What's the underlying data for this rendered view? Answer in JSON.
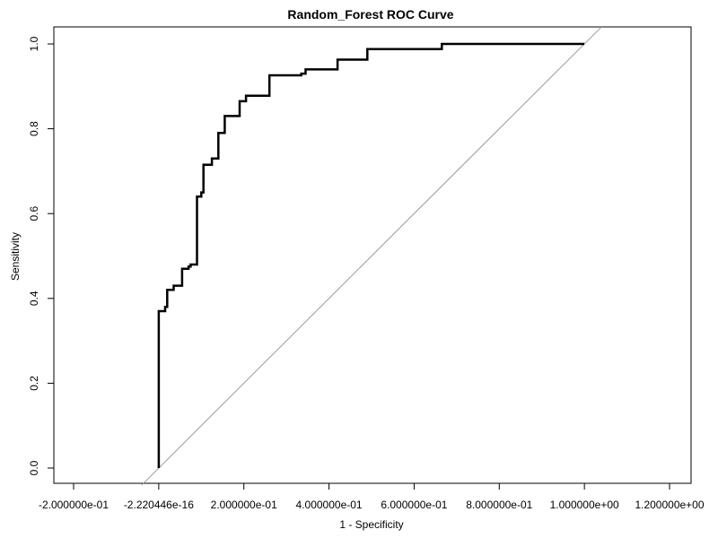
{
  "chart_data": {
    "type": "line",
    "title": "Random_Forest ROC Curve",
    "xlabel": "1 - Specificity",
    "ylabel": "Sensitivity",
    "xlim": [
      -0.2,
      1.2
    ],
    "ylim": [
      0.0,
      1.0
    ],
    "x_ticks": [
      {
        "value": -0.2,
        "label": "-2.000000e-01"
      },
      {
        "value": 0.0,
        "label": "-2.220446e-16"
      },
      {
        "value": 0.2,
        "label": "2.000000e-01"
      },
      {
        "value": 0.4,
        "label": "4.000000e-01"
      },
      {
        "value": 0.6,
        "label": "6.000000e-01"
      },
      {
        "value": 0.8,
        "label": "8.000000e-01"
      },
      {
        "value": 1.0,
        "label": "1.000000e+00"
      },
      {
        "value": 1.2,
        "label": "1.200000e+00"
      }
    ],
    "y_ticks": [
      {
        "value": 0.0,
        "label": "0.0"
      },
      {
        "value": 0.2,
        "label": "0.2"
      },
      {
        "value": 0.4,
        "label": "0.4"
      },
      {
        "value": 0.6,
        "label": "0.6"
      },
      {
        "value": 0.8,
        "label": "0.8"
      },
      {
        "value": 1.0,
        "label": "1.0"
      }
    ],
    "grid": false,
    "series": [
      {
        "color": "#000000",
        "points": [
          [
            0.0,
            0.0
          ],
          [
            0.0,
            0.37
          ],
          [
            0.015,
            0.37
          ],
          [
            0.015,
            0.38
          ],
          [
            0.02,
            0.38
          ],
          [
            0.02,
            0.42
          ],
          [
            0.035,
            0.42
          ],
          [
            0.035,
            0.43
          ],
          [
            0.055,
            0.43
          ],
          [
            0.055,
            0.47
          ],
          [
            0.07,
            0.47
          ],
          [
            0.07,
            0.475
          ],
          [
            0.075,
            0.475
          ],
          [
            0.075,
            0.48
          ],
          [
            0.09,
            0.48
          ],
          [
            0.09,
            0.64
          ],
          [
            0.1,
            0.64
          ],
          [
            0.1,
            0.65
          ],
          [
            0.105,
            0.65
          ],
          [
            0.105,
            0.715
          ],
          [
            0.125,
            0.715
          ],
          [
            0.125,
            0.73
          ],
          [
            0.14,
            0.73
          ],
          [
            0.14,
            0.79
          ],
          [
            0.155,
            0.79
          ],
          [
            0.155,
            0.83
          ],
          [
            0.19,
            0.83
          ],
          [
            0.19,
            0.865
          ],
          [
            0.205,
            0.865
          ],
          [
            0.205,
            0.878
          ],
          [
            0.26,
            0.878
          ],
          [
            0.26,
            0.926
          ],
          [
            0.335,
            0.926
          ],
          [
            0.335,
            0.93
          ],
          [
            0.345,
            0.93
          ],
          [
            0.345,
            0.94
          ],
          [
            0.42,
            0.94
          ],
          [
            0.42,
            0.963
          ],
          [
            0.49,
            0.963
          ],
          [
            0.49,
            0.988
          ],
          [
            0.665,
            0.988
          ],
          [
            0.665,
            1.0
          ],
          [
            1.0,
            1.0
          ]
        ]
      }
    ],
    "reference_line": {
      "color": "#999999",
      "points": [
        [
          -0.04,
          -0.04
        ],
        [
          1.04,
          1.04
        ]
      ]
    }
  }
}
